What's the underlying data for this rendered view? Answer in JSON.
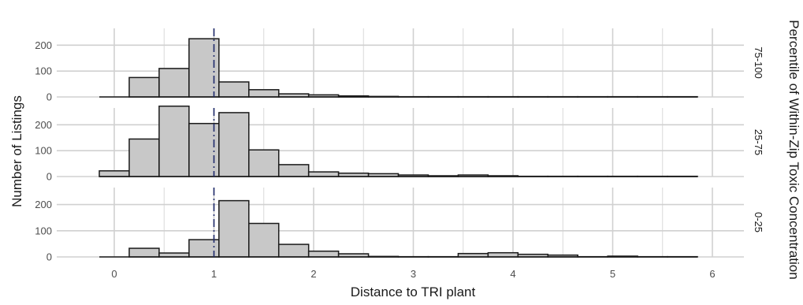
{
  "chart_data": {
    "type": "bar",
    "subtype": "faceted-histogram",
    "xlabel": "Distance to TRI plant",
    "ylabel": "Number of Listings",
    "facet_title": "Percentile of Within-Zip Toxic Concentration",
    "xlim": [
      -0.15,
      6.2
    ],
    "x_ticks": [
      "0",
      "1",
      "2",
      "3",
      "4",
      "5",
      "6"
    ],
    "y_ticks": [
      "0",
      "100",
      "200"
    ],
    "ylim": [
      0,
      265
    ],
    "bin_width": 0.3,
    "reference_line_x": 1,
    "grid": true,
    "bin_starts": [
      -0.15,
      0.15,
      0.45,
      0.75,
      1.05,
      1.35,
      1.65,
      1.95,
      2.25,
      2.55,
      2.85,
      3.15,
      3.45,
      3.75,
      4.05,
      4.35,
      4.65,
      4.95,
      5.25,
      5.55
    ],
    "facets": [
      {
        "label": "75-100",
        "values": [
          0,
          75,
          110,
          225,
          58,
          28,
          12,
          8,
          4,
          2,
          1,
          1,
          1,
          1,
          1,
          1,
          1,
          1,
          1,
          1
        ]
      },
      {
        "label": "25-75",
        "values": [
          22,
          145,
          272,
          205,
          247,
          103,
          46,
          18,
          13,
          11,
          6,
          3,
          6,
          3,
          1,
          1,
          1,
          1,
          1,
          1
        ]
      },
      {
        "label": "0-25",
        "values": [
          0,
          33,
          15,
          66,
          215,
          128,
          48,
          22,
          12,
          2,
          1,
          1,
          13,
          16,
          10,
          7,
          1,
          3,
          1,
          1
        ]
      }
    ]
  }
}
